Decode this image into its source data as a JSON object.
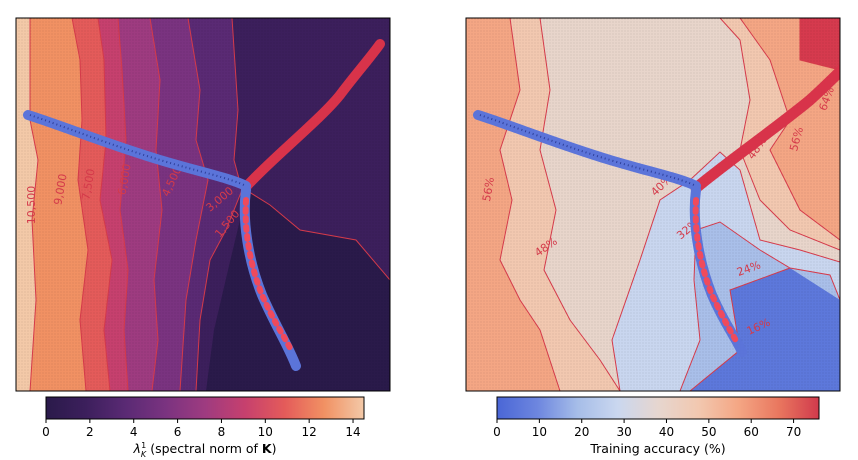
{
  "colors": {
    "frame": "#000000",
    "contour_line": "#d43a4a",
    "traj_blue": "#5b74d9",
    "traj_red": "#d8334a",
    "traj_blue_dots": "#2e3f9a",
    "traj_red_dots": "#f04a5c"
  },
  "chart_data": [
    {
      "type": "heatmap",
      "colorbar": {
        "label_parts": [
          "λ",
          "K",
          "1",
          " (spectral norm of ",
          "K",
          ")"
        ],
        "range": [
          0,
          14.5
        ],
        "ticks": [
          "0",
          "2",
          "4",
          "6",
          "8",
          "10",
          "12",
          "14"
        ],
        "tick_values": [
          0,
          2,
          4,
          6,
          8,
          10,
          12,
          14
        ],
        "colors": [
          "#2a1a4a",
          "#3c1f5c",
          "#5a2a74",
          "#7a3380",
          "#9e3b80",
          "#c6406e",
          "#e45b5a",
          "#f19163",
          "#f3c9a8"
        ]
      },
      "contour_labels": [
        "10,500",
        "9,000",
        "7,500",
        "6,000",
        "4,500",
        "3,000",
        "1,500"
      ],
      "bands": [
        {
          "upper": 14.0,
          "color": "#f3c9a8"
        },
        {
          "upper": 12.0,
          "color": "#f19163"
        },
        {
          "upper": 10.5,
          "color": "#e45b5a"
        },
        {
          "upper": 9.0,
          "color": "#c6406e"
        },
        {
          "upper": 7.5,
          "color": "#9e3b80"
        },
        {
          "upper": 6.0,
          "color": "#7a3380"
        },
        {
          "upper": 4.5,
          "color": "#5a2a74"
        },
        {
          "upper": 3.0,
          "color": "#3c1f5c"
        },
        {
          "upper": 1.5,
          "color": "#2a1a4a"
        }
      ]
    },
    {
      "type": "heatmap",
      "colorbar": {
        "label": "Training accuracy (%)",
        "range": [
          0,
          76
        ],
        "ticks": [
          "0",
          "10",
          "20",
          "30",
          "40",
          "50",
          "60",
          "70"
        ],
        "tick_values": [
          0,
          10,
          20,
          30,
          40,
          50,
          60,
          70
        ],
        "colors": [
          "#4a66d6",
          "#6d86df",
          "#a6bde8",
          "#cad7ef",
          "#e6d6cf",
          "#f2c8b0",
          "#f4a684",
          "#e9775f",
          "#d13a4c"
        ]
      },
      "contour_labels": [
        "56%",
        "48%",
        "40%",
        "32%",
        "24%",
        "16%",
        "48%",
        "56%",
        "64%"
      ],
      "regions": [
        {
          "level": "56%",
          "color": "#f4a684"
        },
        {
          "level": "48%",
          "color": "#f2c8b0"
        },
        {
          "level": "40%",
          "color": "#e8d5cb"
        },
        {
          "level": "32%",
          "color": "#c9d6ef"
        },
        {
          "level": "24%",
          "color": "#a9bfe9"
        },
        {
          "level": "16%",
          "color": "#5d78db"
        },
        {
          "level": "64%",
          "color": "#d63a4e"
        }
      ]
    }
  ]
}
